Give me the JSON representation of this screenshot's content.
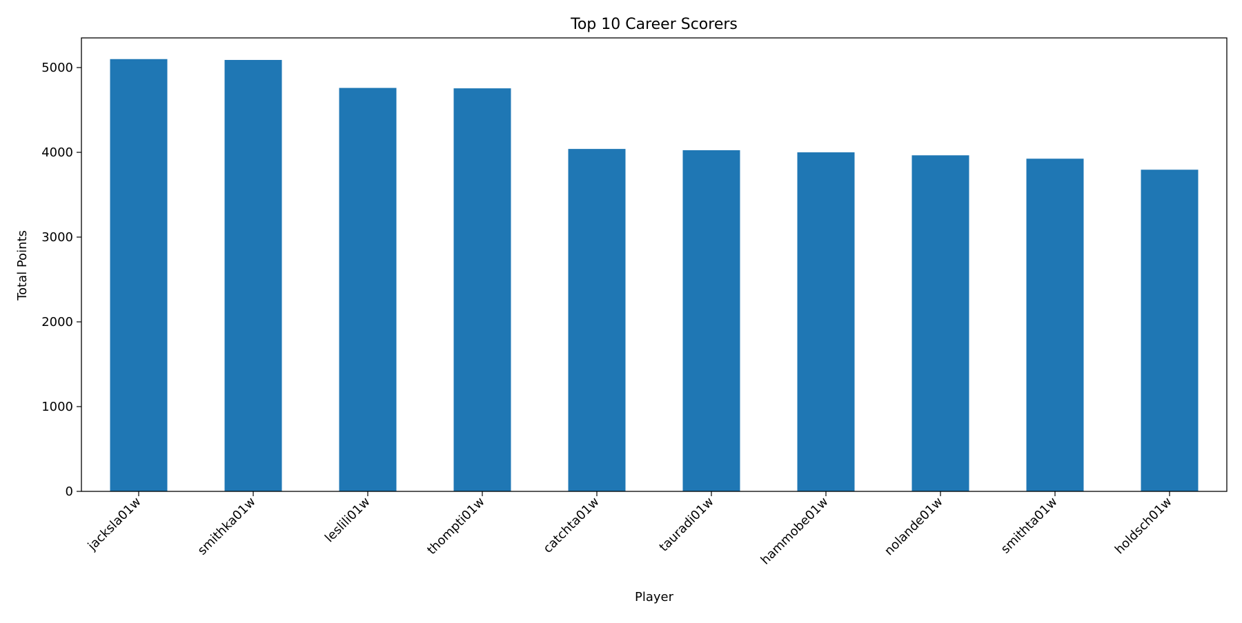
{
  "chart_data": {
    "type": "bar",
    "title": "Top 10 Career Scorers",
    "xlabel": "Player",
    "ylabel": "Total Points",
    "categories": [
      "jacksla01w",
      "smithka01w",
      "leslili01w",
      "thompti01w",
      "catchta01w",
      "tauradi01w",
      "hammobe01w",
      "nolande01w",
      "smithta01w",
      "holdsch01w"
    ],
    "values": [
      5100,
      5090,
      4760,
      4755,
      4040,
      4025,
      4000,
      3965,
      3925,
      3795
    ],
    "ylim": [
      0,
      5350
    ],
    "yticks": [
      0,
      1000,
      2000,
      3000,
      4000,
      5000
    ],
    "grid": false,
    "legend": "none",
    "bar_color": "#1f77b4"
  }
}
